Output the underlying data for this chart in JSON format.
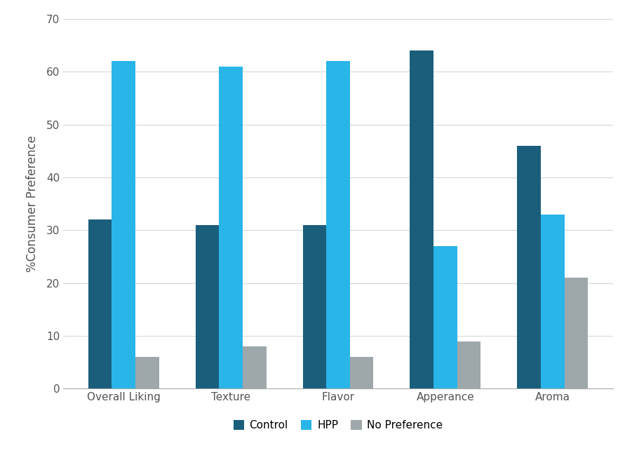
{
  "categories": [
    "Overall Liking",
    "Texture",
    "Flavor",
    "Apperance",
    "Aroma"
  ],
  "series": {
    "Control": [
      32,
      31,
      31,
      64,
      46
    ],
    "HPP": [
      62,
      61,
      62,
      27,
      33
    ],
    "No Preference": [
      6,
      8,
      6,
      9,
      21
    ]
  },
  "colors": {
    "Control": "#1b5e7b",
    "HPP": "#29b5e8",
    "No Preference": "#9ea7aa"
  },
  "ylabel": "%Consumer Preference",
  "ylim": [
    0,
    70
  ],
  "yticks": [
    0,
    10,
    20,
    30,
    40,
    50,
    60,
    70
  ],
  "legend_labels": [
    "Control",
    "HPP",
    "No Preference"
  ],
  "bar_width": 0.22,
  "grid_color": "#d5d8dc",
  "background_color": "#ffffff",
  "tick_fontsize": 11,
  "ylabel_fontsize": 12,
  "legend_fontsize": 11
}
